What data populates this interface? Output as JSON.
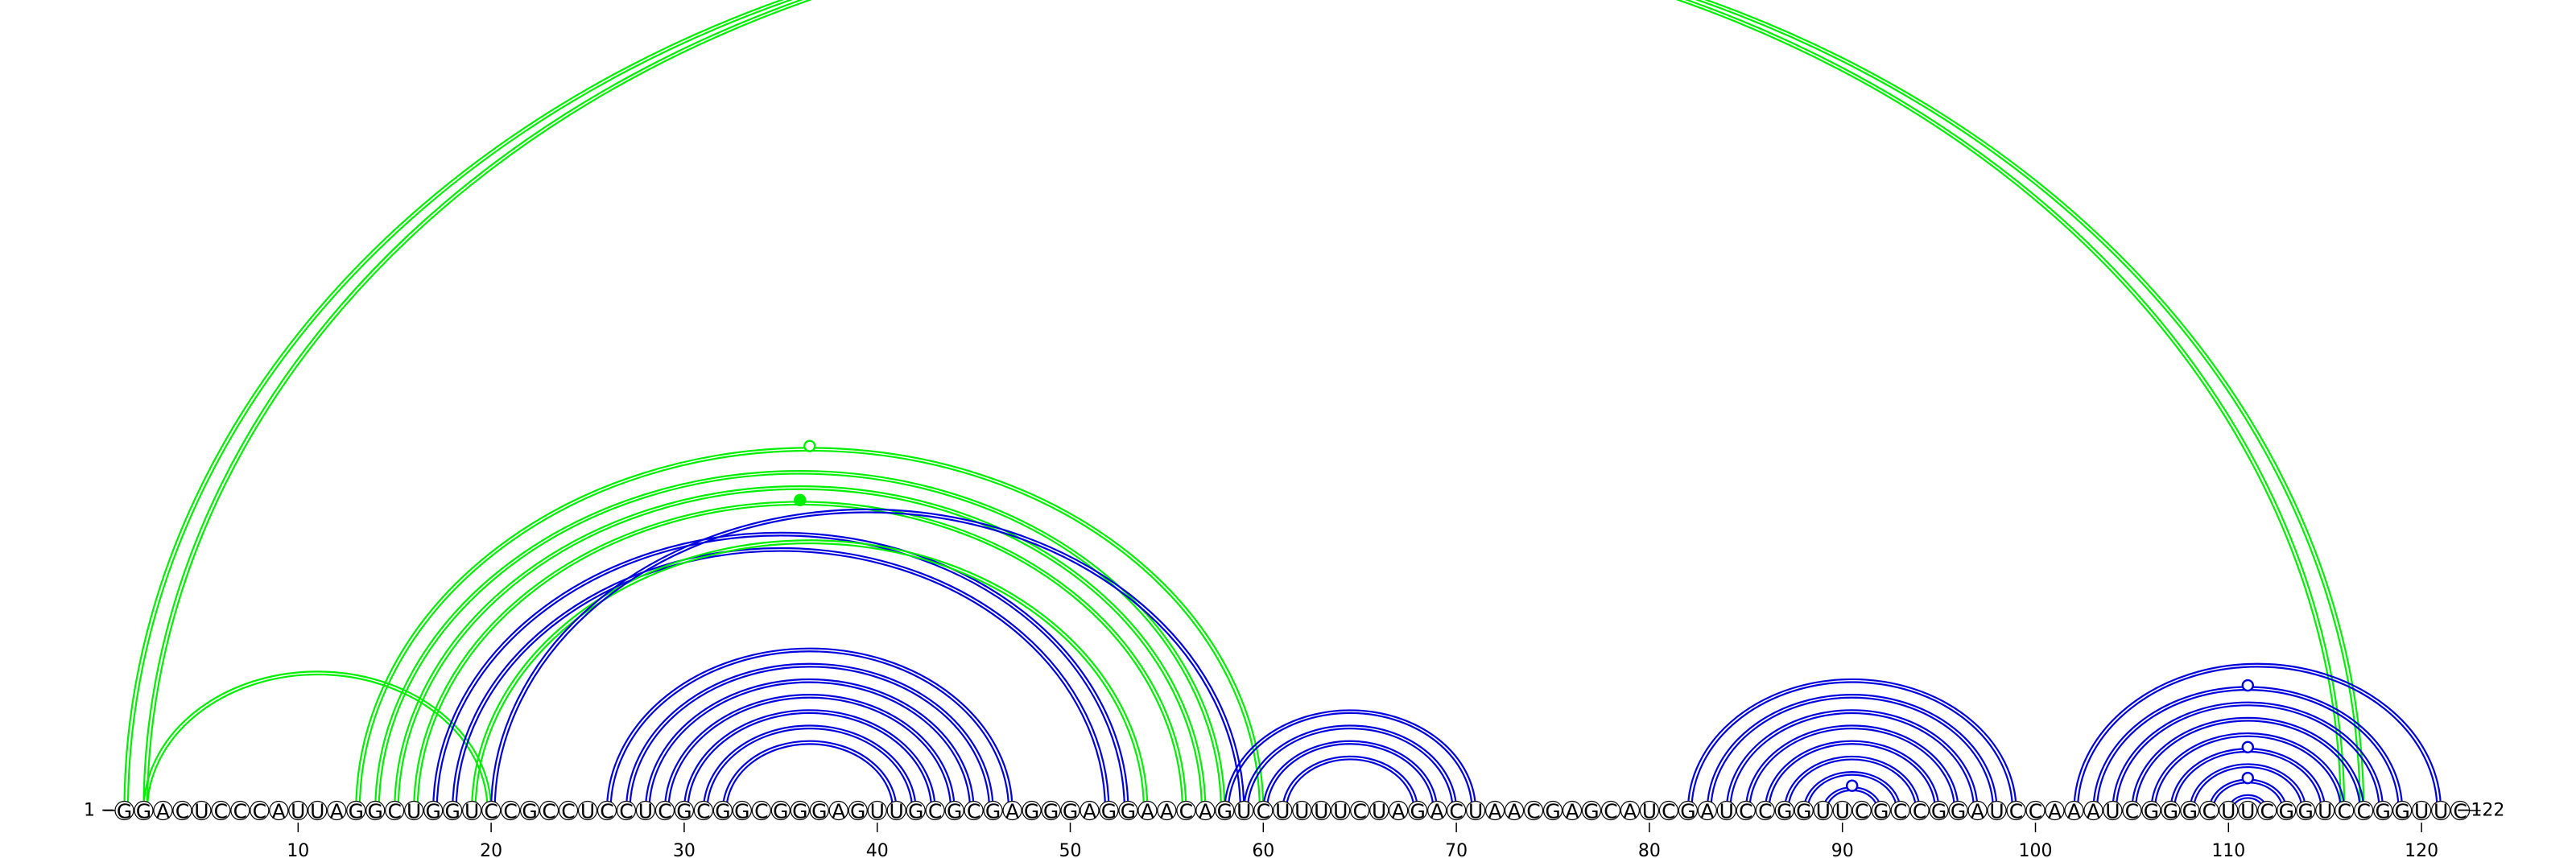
{
  "sequence": "GGACUCCCAUUAGGCUGGUCCGCCUCCUCGCGGCGGGAGUUGCGCGAGGGAGGAACAGUCUUUUCUAGACUAACGAGCAUCGAUCCGGUUCGCCGGAUCCAAAUCGGGCUUCGGUCCGGUUC",
  "start_label": "1 −",
  "end_label": "−122",
  "ticks": [
    10,
    20,
    30,
    40,
    50,
    60,
    70,
    80,
    90,
    100,
    110,
    120
  ],
  "colors": {
    "green": "#00ee00",
    "blue": "#0000dd",
    "nucleotide_fill": "#ffffff",
    "nucleotide_stroke": "#000000"
  },
  "arcs": [
    {
      "i": 1,
      "j": 116,
      "color": "green"
    },
    {
      "i": 2,
      "j": 117,
      "color": "green"
    },
    {
      "i": 2,
      "j": 20,
      "color": "green"
    },
    {
      "i": 13,
      "j": 60,
      "color": "green"
    },
    {
      "i": 14,
      "j": 58,
      "color": "green"
    },
    {
      "i": 15,
      "j": 57,
      "color": "green"
    },
    {
      "i": 16,
      "j": 56,
      "color": "green"
    },
    {
      "i": 17,
      "j": 53,
      "color": "blue"
    },
    {
      "i": 18,
      "j": 52,
      "color": "blue"
    },
    {
      "i": 19,
      "j": 54,
      "color": "green"
    },
    {
      "i": 20,
      "j": 59,
      "color": "blue"
    },
    {
      "i": 26,
      "j": 47,
      "color": "blue"
    },
    {
      "i": 27,
      "j": 46,
      "color": "blue"
    },
    {
      "i": 28,
      "j": 45,
      "color": "blue"
    },
    {
      "i": 29,
      "j": 44,
      "color": "blue"
    },
    {
      "i": 30,
      "j": 43,
      "color": "blue"
    },
    {
      "i": 31,
      "j": 42,
      "color": "blue"
    },
    {
      "i": 32,
      "j": 41,
      "color": "blue"
    },
    {
      "i": 58,
      "j": 71,
      "color": "blue"
    },
    {
      "i": 59,
      "j": 70,
      "color": "blue"
    },
    {
      "i": 60,
      "j": 69,
      "color": "blue"
    },
    {
      "i": 61,
      "j": 68,
      "color": "blue"
    },
    {
      "i": 82,
      "j": 99,
      "color": "blue"
    },
    {
      "i": 83,
      "j": 98,
      "color": "blue"
    },
    {
      "i": 84,
      "j": 97,
      "color": "blue"
    },
    {
      "i": 85,
      "j": 96,
      "color": "blue"
    },
    {
      "i": 86,
      "j": 95,
      "color": "blue"
    },
    {
      "i": 87,
      "j": 94,
      "color": "blue"
    },
    {
      "i": 88,
      "j": 93,
      "color": "blue"
    },
    {
      "i": 89,
      "j": 92,
      "color": "blue"
    },
    {
      "i": 102,
      "j": 121,
      "color": "blue"
    },
    {
      "i": 103,
      "j": 119,
      "color": "blue"
    },
    {
      "i": 104,
      "j": 118,
      "color": "blue"
    },
    {
      "i": 105,
      "j": 117,
      "color": "blue"
    },
    {
      "i": 106,
      "j": 116,
      "color": "blue"
    },
    {
      "i": 107,
      "j": 115,
      "color": "blue"
    },
    {
      "i": 108,
      "j": 114,
      "color": "blue"
    },
    {
      "i": 109,
      "j": 113,
      "color": "blue"
    },
    {
      "i": 110,
      "j": 112,
      "color": "blue"
    }
  ],
  "markers": [
    {
      "i": 13,
      "j": 60,
      "color": "green",
      "filled": false
    },
    {
      "i": 16,
      "j": 56,
      "color": "green",
      "filled": true
    },
    {
      "i": 89,
      "j": 92,
      "color": "blue",
      "filled": false
    },
    {
      "i": 103,
      "j": 119,
      "color": "blue",
      "filled": false
    },
    {
      "i": 107,
      "j": 115,
      "color": "blue",
      "filled": false
    },
    {
      "i": 109,
      "j": 113,
      "color": "blue",
      "filled": false
    }
  ]
}
